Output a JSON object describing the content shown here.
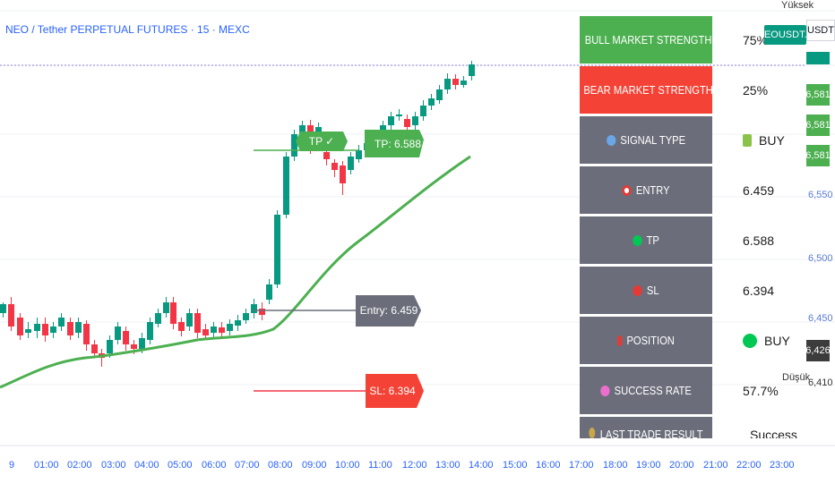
{
  "header": {
    "title": "NEO / Tether PERPETUAL FUTURES · 15 · MEXC"
  },
  "price_axis": {
    "high_label": "Yüksek",
    "symbol": "NEOUSDT.P",
    "currency_button": "USDT",
    "price_tags": [
      "6,581",
      "6,581",
      "6,581"
    ],
    "labels": [
      "6,550",
      "6,500",
      "6,450"
    ],
    "current_price": "6,426",
    "low_label": "Düşük",
    "low_value": "6,410"
  },
  "time_axis": {
    "labels": [
      "9",
      "01:00",
      "02:00",
      "03:00",
      "04:00",
      "05:00",
      "06:00",
      "07:00",
      "08:00",
      "09:00",
      "10:00",
      "11:00",
      "12:00",
      "13:00",
      "14:00",
      "15:00",
      "16:00",
      "17:00",
      "18:00",
      "19:00",
      "20:00",
      "21:00",
      "22:00",
      "23:00"
    ]
  },
  "table": {
    "rows": [
      {
        "label": "BULL MARKET STRENGTH",
        "value": "75%",
        "icon": "thermometer-icon",
        "bg": "#4caf50"
      },
      {
        "label": "BEAR MARKET STRENGTH",
        "value": "25%",
        "icon": "thermometer-icon",
        "bg": "#f44336"
      },
      {
        "label": "SIGNAL TYPE",
        "value": "BUY",
        "icon": "magnifier-icon",
        "bg": "#6b6e7a",
        "value_icon": "green-square-icon"
      },
      {
        "label": "ENTRY",
        "value": "6.459",
        "icon": "target-icon",
        "bg": "#6b6e7a"
      },
      {
        "label": "TP",
        "value": "6.588",
        "icon": "green-circle-icon",
        "bg": "#6b6e7a"
      },
      {
        "label": "SL",
        "value": "6.394",
        "icon": "red-circle-icon",
        "bg": "#6b6e7a"
      },
      {
        "label": "POSITION",
        "value": "BUY",
        "icon": "pin-icon",
        "bg": "#6b6e7a",
        "value_icon": "green-circle-icon"
      },
      {
        "label": "SUCCESS RATE",
        "value": "57.7%",
        "icon": "pink-circle-icon",
        "bg": "#6b6e7a"
      },
      {
        "label": "LAST TRADE RESULT",
        "value": "Successful",
        "icon": "gold-icon",
        "bg": "#6b6e7a",
        "value_icon": "check-icon"
      }
    ]
  },
  "annotations": {
    "tp_flag": "TP ✓",
    "tp_label": "TP: 6.588",
    "entry_label": "Entry: 6.459",
    "sl_label": "SL: 6.394"
  },
  "colors": {
    "up": "#089981",
    "down": "#f23645",
    "ma": "#4caf50",
    "label_gray": "#6b6e7a",
    "label_green": "#4caf50",
    "label_red": "#f44336"
  }
}
